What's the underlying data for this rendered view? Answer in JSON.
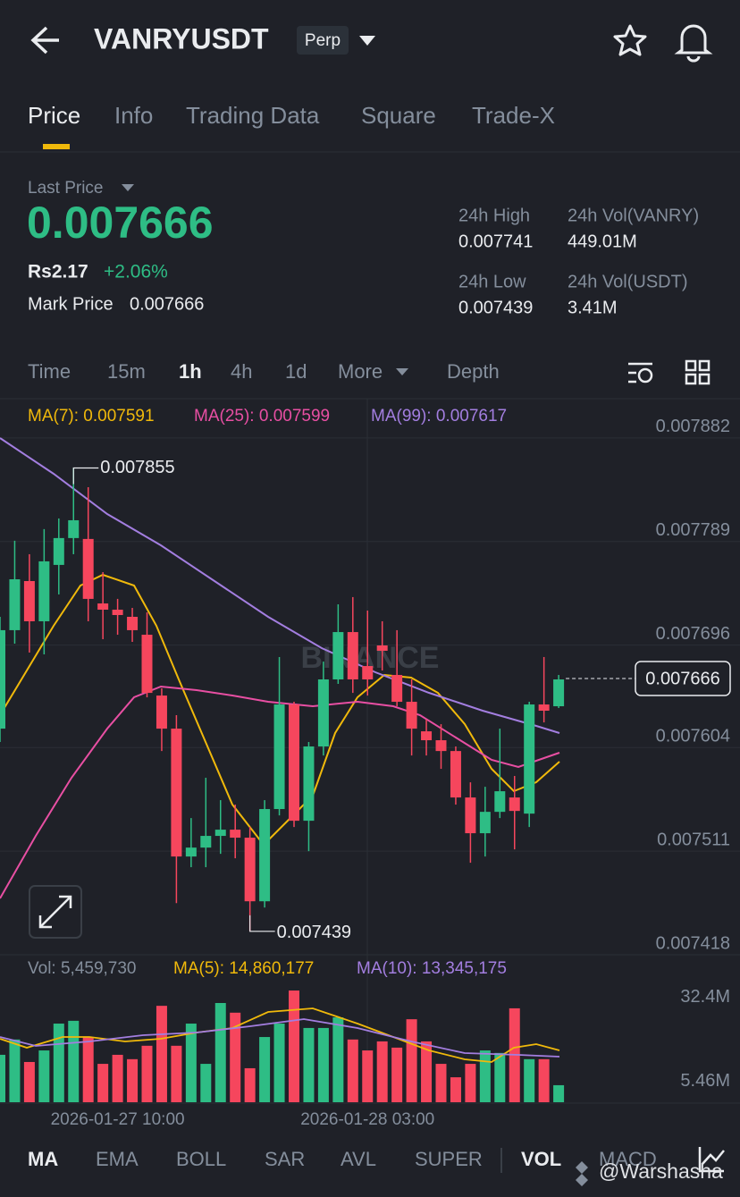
{
  "header": {
    "symbol": "VANRYUSDT",
    "badge": "Perp"
  },
  "tabs": [
    "Price",
    "Info",
    "Trading Data",
    "Square",
    "Trade-X"
  ],
  "ticker": {
    "last_price_label": "Last Price",
    "last_price": "0.007666",
    "fiat": "Rs2.17",
    "change": "+2.06%",
    "mark_price_label": "Mark Price",
    "mark_price": "0.007666",
    "stats": [
      {
        "label": "24h High",
        "value": "0.007741"
      },
      {
        "label": "24h Vol(VANRY)",
        "value": "449.01M"
      },
      {
        "label": "24h Low",
        "value": "0.007439"
      },
      {
        "label": "24h Vol(USDT)",
        "value": "3.41M"
      }
    ]
  },
  "intervals": [
    "Time",
    "15m",
    "1h",
    "4h",
    "1d",
    "More",
    "Depth"
  ],
  "ma_legend": [
    "MA(7): 0.007591",
    "MA(25): 0.007599",
    "MA(99): 0.007617"
  ],
  "vol_legend": [
    "Vol: 5,459,730",
    "MA(5): 14,860,177",
    "MA(10): 13,345,175"
  ],
  "chart_data": {
    "type": "candlestick",
    "watermark": "BINANCE",
    "categories": [
      null,
      null,
      null,
      null,
      null,
      null,
      null,
      null,
      "2026-01-27 10:00",
      null,
      null,
      null,
      null,
      null,
      null,
      null,
      null,
      null,
      null,
      null,
      null,
      null,
      null,
      null,
      null,
      "2026-01-28 03:00",
      null,
      null,
      null,
      null,
      null,
      null,
      null,
      null,
      null,
      null,
      null,
      null,
      null
    ],
    "candles": [
      {
        "open": 0.007621,
        "high": 0.0077214,
        "low": 0.007609,
        "close": 0.0077094
      },
      {
        "open": 0.0077094,
        "high": 0.0077897,
        "low": 0.0076973,
        "close": 0.0077551
      },
      {
        "open": 0.0077535,
        "high": 0.0077776,
        "low": 0.0076893,
        "close": 0.0077174
      },
      {
        "open": 0.0077174,
        "high": 0.0078001,
        "low": 0.0076877,
        "close": 0.0077712
      },
      {
        "open": 0.007768,
        "high": 0.0078097,
        "low": 0.0077415,
        "close": 0.0077921
      },
      {
        "open": 0.0077921,
        "high": 0.007855,
        "low": 0.0077776,
        "close": 0.0078081
      },
      {
        "open": 0.0077913,
        "high": 0.0078378,
        "low": 0.0077174,
        "close": 0.0077375
      },
      {
        "open": 0.0077334,
        "high": 0.0077615,
        "low": 0.0077013,
        "close": 0.0077278
      },
      {
        "open": 0.0077278,
        "high": 0.0077375,
        "low": 0.0077053,
        "close": 0.007723
      },
      {
        "open": 0.0077214,
        "high": 0.0077294,
        "low": 0.0076989,
        "close": 0.0077094
      },
      {
        "open": 0.0077053,
        "high": 0.0077254,
        "low": 0.0076491,
        "close": 0.0076531
      },
      {
        "open": 0.0076507,
        "high": 0.0076572,
        "low": 0.0076009,
        "close": 0.007621
      },
      {
        "open": 0.007621,
        "high": 0.0076331,
        "low": 0.0074644,
        "close": 0.0075062
      },
      {
        "open": 0.0075062,
        "high": 0.0075407,
        "low": 0.0074966,
        "close": 0.0075142
      },
      {
        "open": 0.0075142,
        "high": 0.0075769,
        "low": 0.0074966,
        "close": 0.0075247
      },
      {
        "open": 0.0075247,
        "high": 0.0075568,
        "low": 0.0075086,
        "close": 0.0075303
      },
      {
        "open": 0.0075303,
        "high": 0.0075528,
        "low": 0.0075046,
        "close": 0.0075231
      },
      {
        "open": 0.0075231,
        "high": 0.0075327,
        "low": 0.007439,
        "close": 0.007466
      },
      {
        "open": 0.007466,
        "high": 0.0075568,
        "low": 0.0074604,
        "close": 0.0075488
      },
      {
        "open": 0.0075488,
        "high": 0.0076853,
        "low": 0.0075431,
        "close": 0.0076427
      },
      {
        "open": 0.0076427,
        "high": 0.0076451,
        "low": 0.0075327,
        "close": 0.0075383
      },
      {
        "open": 0.0075383,
        "high": 0.007609,
        "low": 0.007511,
        "close": 0.007605
      },
      {
        "open": 0.007605,
        "high": 0.0076812,
        "low": 0.0075969,
        "close": 0.0076652
      },
      {
        "open": 0.0076652,
        "high": 0.0077326,
        "low": 0.0076612,
        "close": 0.0077077
      },
      {
        "open": 0.0077077,
        "high": 0.0077391,
        "low": 0.0076531,
        "close": 0.0076652
      },
      {
        "open": 0.0076772,
        "high": 0.007727,
        "low": 0.0076507,
        "close": 0.0076652
      },
      {
        "open": 0.0076957,
        "high": 0.0077174,
        "low": 0.0076732,
        "close": 0.0076909
      },
      {
        "open": 0.0076692,
        "high": 0.0077094,
        "low": 0.0076411,
        "close": 0.0076451
      },
      {
        "open": 0.0076451,
        "high": 0.0076652,
        "low": 0.0075969,
        "close": 0.007621
      },
      {
        "open": 0.0076186,
        "high": 0.0076291,
        "low": 0.0075969,
        "close": 0.0076106
      },
      {
        "open": 0.0076106,
        "high": 0.007625,
        "low": 0.0075849,
        "close": 0.0076009
      },
      {
        "open": 0.0076009,
        "high": 0.007605,
        "low": 0.0075528,
        "close": 0.0075592
      },
      {
        "open": 0.0075592,
        "high": 0.0075728,
        "low": 0.0075006,
        "close": 0.0075271
      },
      {
        "open": 0.0075271,
        "high": 0.0075688,
        "low": 0.0075062,
        "close": 0.0075463
      },
      {
        "open": 0.0075463,
        "high": 0.007621,
        "low": 0.0075407,
        "close": 0.0075648
      },
      {
        "open": 0.0075592,
        "high": 0.0075785,
        "low": 0.0075126,
        "close": 0.0075471
      },
      {
        "open": 0.0075447,
        "high": 0.0076451,
        "low": 0.0075327,
        "close": 0.0076427
      },
      {
        "open": 0.0076427,
        "high": 0.0076853,
        "low": 0.0076266,
        "close": 0.0076371
      },
      {
        "open": 0.0076411,
        "high": 0.0076692,
        "low": 0.0076395,
        "close": 0.0076652
      }
    ],
    "volumes": [
      15200000,
      20100000,
      12900000,
      16600000,
      25200000,
      26100000,
      20900000,
      12300000,
      15200000,
      13800000,
      18100000,
      30900000,
      18100000,
      25200000,
      12300000,
      31800000,
      28700000,
      10900000,
      20900000,
      25200000,
      35800000,
      23800000,
      23800000,
      27200000,
      20100000,
      16600000,
      19500000,
      17500000,
      26600000,
      19500000,
      12300000,
      8000000,
      12300000,
      16600000,
      15800000,
      30100000,
      13800000,
      13800000,
      5459730
    ],
    "up_color": "#2ebd85",
    "down_color": "#f6465d",
    "ylim": [
      0.007418,
      0.00791
    ],
    "yticks": [
      0.007882,
      0.007789,
      0.007696,
      0.007604,
      0.007511,
      0.007418
    ],
    "last_price": 0.007666,
    "high_marker": 0.007855,
    "low_marker": 0.007439,
    "vol_ylim": [
      0,
      38100000
    ],
    "vol_yticks": [
      {
        "value": 32400000,
        "label": "32.4M"
      },
      {
        "value": 5460000,
        "label": "5.46M"
      }
    ]
  },
  "bottom_tabs": [
    "MA",
    "EMA",
    "BOLL",
    "SAR",
    "AVL",
    "SUPER",
    "VOL",
    "MACD"
  ],
  "watermark": "@Warshasha"
}
